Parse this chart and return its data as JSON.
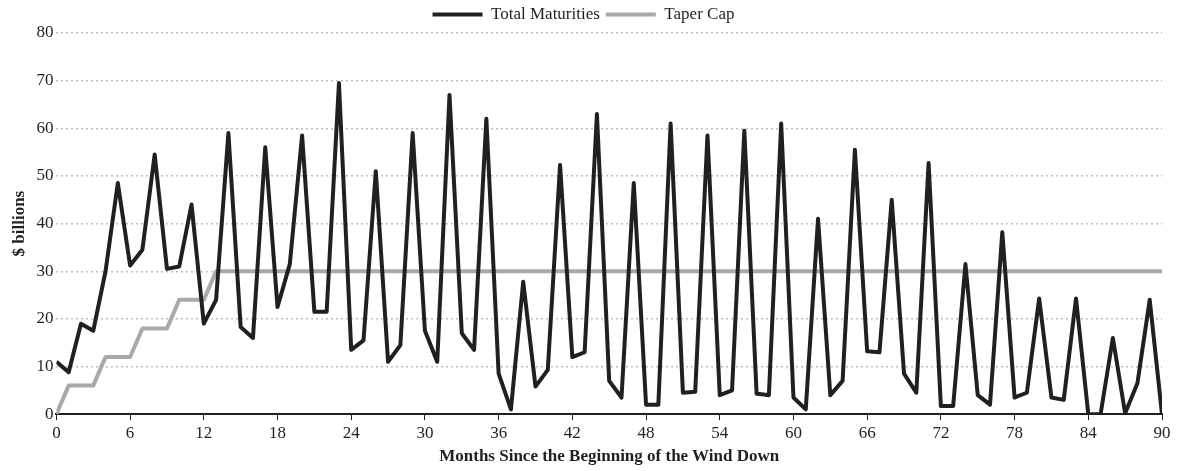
{
  "chart_data": {
    "type": "line",
    "xlabel": "Months Since the Beginning of the Wind Down",
    "ylabel": "$ billions",
    "x": [
      0,
      1,
      2,
      3,
      4,
      5,
      6,
      7,
      8,
      9,
      10,
      11,
      12,
      13,
      14,
      15,
      16,
      17,
      18,
      19,
      20,
      21,
      22,
      23,
      24,
      25,
      26,
      27,
      28,
      29,
      30,
      31,
      32,
      33,
      34,
      35,
      36,
      37,
      38,
      39,
      40,
      41,
      42,
      43,
      44,
      45,
      46,
      47,
      48,
      49,
      50,
      51,
      52,
      53,
      54,
      55,
      56,
      57,
      58,
      59,
      60,
      61,
      62,
      63,
      64,
      65,
      66,
      67,
      68,
      69,
      70,
      71,
      72,
      73,
      74,
      75,
      76,
      77,
      78,
      79,
      80,
      81,
      82,
      83,
      84,
      85,
      86,
      87,
      88,
      89,
      90
    ],
    "series": [
      {
        "name": "Total Maturities",
        "color": "#231f20",
        "values": [
          11,
          8.8,
          19,
          17.5,
          30,
          48.5,
          31.2,
          34.5,
          54.5,
          30.5,
          31,
          44,
          19,
          24,
          59,
          18.3,
          16,
          56,
          22.5,
          31.5,
          58.5,
          21.5,
          21.5,
          69.5,
          13.5,
          15.5,
          51,
          11,
          14.5,
          59,
          17.5,
          11,
          67,
          17,
          13.5,
          62,
          8.5,
          1,
          27.8,
          5.8,
          9.3,
          52.3,
          12,
          13,
          63,
          7,
          3.5,
          48.5,
          2,
          2,
          61,
          4.5,
          4.7,
          58.5,
          4,
          5,
          59.5,
          4.3,
          4,
          61,
          3.5,
          1,
          41,
          4,
          7,
          55.5,
          13.2,
          13,
          45,
          8.5,
          4.5,
          52.7,
          1.7,
          1.7,
          31.5,
          4,
          2,
          38.2,
          3.5,
          4.5,
          24.3,
          3.5,
          3,
          24.3,
          0,
          0,
          16,
          0.2,
          6.5,
          24,
          0
        ]
      },
      {
        "name": "Taper Cap",
        "color": "#a7a9ac",
        "values": [
          0,
          6,
          6,
          6,
          12,
          12,
          12,
          18,
          18,
          18,
          24,
          24,
          24,
          30,
          30,
          30,
          30,
          30,
          30,
          30,
          30,
          30,
          30,
          30,
          30,
          30,
          30,
          30,
          30,
          30,
          30,
          30,
          30,
          30,
          30,
          30,
          30,
          30,
          30,
          30,
          30,
          30,
          30,
          30,
          30,
          30,
          30,
          30,
          30,
          30,
          30,
          30,
          30,
          30,
          30,
          30,
          30,
          30,
          30,
          30,
          30,
          30,
          30,
          30,
          30,
          30,
          30,
          30,
          30,
          30,
          30,
          30,
          30,
          30,
          30,
          30,
          30,
          30,
          30,
          30,
          30,
          30,
          30,
          30,
          30,
          30,
          30,
          30,
          30,
          30,
          30
        ]
      }
    ],
    "xlim": [
      0,
      90
    ],
    "xticks": [
      0,
      6,
      12,
      18,
      24,
      30,
      36,
      42,
      48,
      54,
      60,
      66,
      72,
      78,
      84,
      90
    ],
    "ylim": [
      0,
      80
    ],
    "yticks": [
      0,
      10,
      20,
      30,
      40,
      50,
      60,
      70,
      80
    ],
    "grid": "y",
    "legend": "top",
    "marker": "none"
  }
}
